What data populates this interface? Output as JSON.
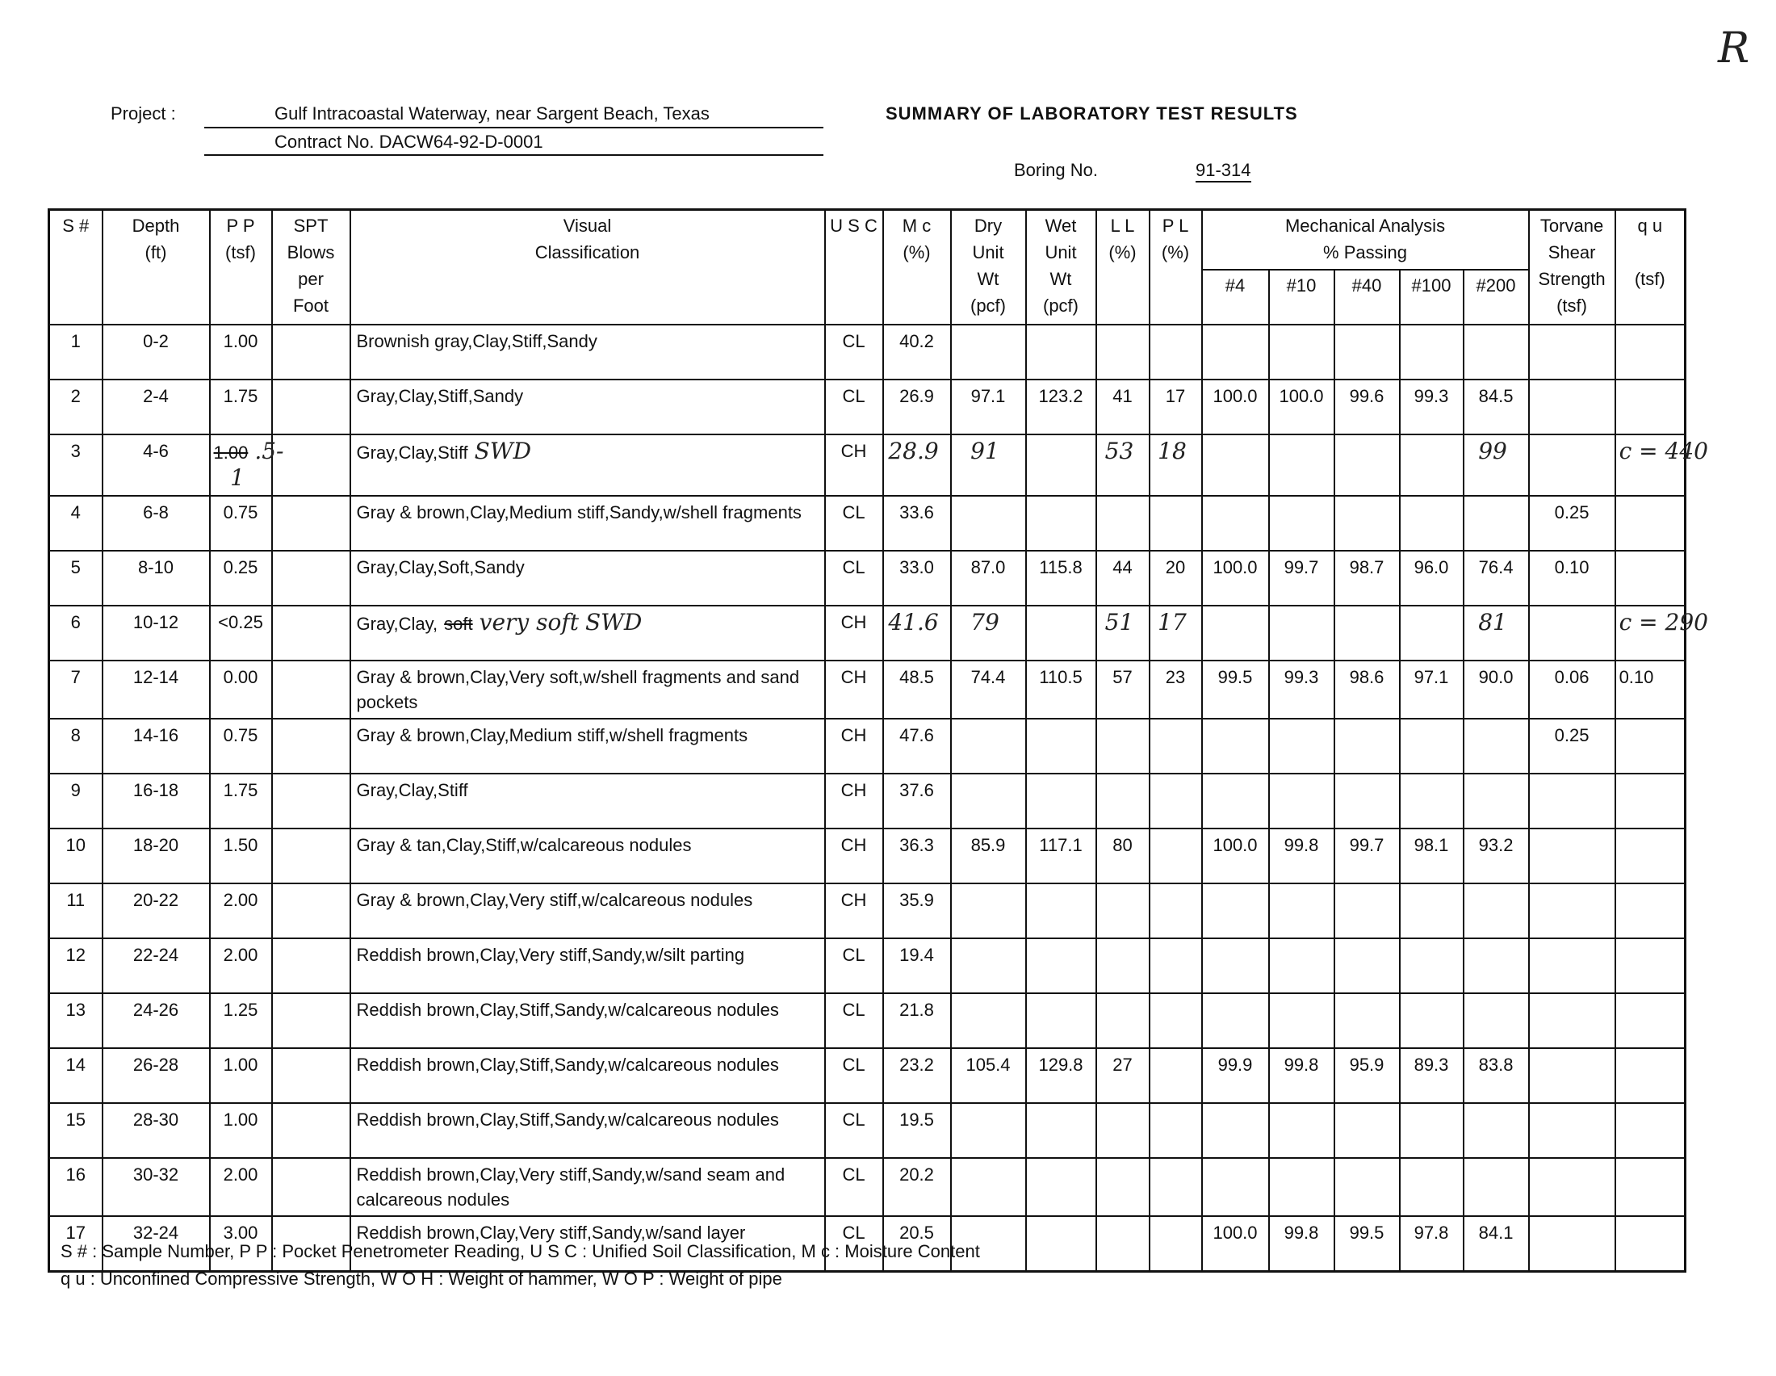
{
  "corner_mark": "R",
  "header": {
    "project_label": "Project :",
    "project": "Gulf Intracoastal Waterway, near Sargent Beach, Texas",
    "contract": "Contract No. DACW64-92-D-0001",
    "title": "SUMMARY OF LABORATORY TEST RESULTS",
    "boring_label": "Boring No.",
    "boring_no": "91-314"
  },
  "table": {
    "columns": [
      "S #",
      "Depth\n(ft)",
      "P P\n(tsf)",
      "SPT\nBlows\nper\nFoot",
      "Visual\nClassification",
      "U S C",
      "M c\n(%)",
      "Dry\nUnit\nWt\n(pcf)",
      "Wet\nUnit\nWt\n(pcf)",
      "L L\n(%)",
      "P L\n(%)",
      "#4",
      "#10",
      "#40",
      "#100",
      "#200",
      "Torvane\nShear\nStrength\n(tsf)",
      "q u\n\n(tsf)"
    ],
    "mechanical_group": "Mechanical Analysis\n% Passing",
    "rows": [
      [
        "1",
        "0-2",
        "1.00",
        null,
        "Brownish gray,Clay,Stiff,Sandy",
        "CL",
        "40.2",
        null,
        null,
        null,
        null,
        null,
        null,
        null,
        null,
        null,
        null,
        null
      ],
      [
        "2",
        "2-4",
        "1.75",
        null,
        "Gray,Clay,Stiff,Sandy",
        "CL",
        "26.9",
        "97.1",
        "123.2",
        "41",
        "17",
        "100.0",
        "100.0",
        "99.6",
        "99.3",
        "84.5",
        null,
        null
      ],
      [
        "3",
        "4-6",
        [
          {
            "text": "1.00",
            "style": "struck"
          },
          {
            "text": ".5-1",
            "style": "hand"
          }
        ],
        null,
        [
          {
            "text": "Gray,Clay,Stiff"
          },
          {
            "text": "SWD",
            "style": "hand"
          }
        ],
        "CH",
        [
          {
            "text": "28.9",
            "style": "hand"
          }
        ],
        [
          {
            "text": "91",
            "style": "hand"
          }
        ],
        null,
        [
          {
            "text": "53",
            "style": "hand"
          }
        ],
        [
          {
            "text": "18",
            "style": "hand"
          }
        ],
        null,
        null,
        null,
        null,
        [
          {
            "text": "99",
            "style": "hand"
          }
        ],
        null,
        [
          {
            "text": "c = 440",
            "style": "hand"
          }
        ]
      ],
      [
        "4",
        "6-8",
        "0.75",
        null,
        "Gray & brown,Clay,Medium stiff,Sandy,w/shell fragments",
        "CL",
        "33.6",
        null,
        null,
        null,
        null,
        null,
        null,
        null,
        null,
        null,
        "0.25",
        null
      ],
      [
        "5",
        "8-10",
        "0.25",
        null,
        "Gray,Clay,Soft,Sandy",
        "CL",
        "33.0",
        "87.0",
        "115.8",
        "44",
        "20",
        "100.0",
        "99.7",
        "98.7",
        "96.0",
        "76.4",
        "0.10",
        null
      ],
      [
        "6",
        "10-12",
        "<0.25",
        null,
        [
          {
            "text": "Gray,Clay,"
          },
          {
            "text": "soft",
            "style": "struck"
          },
          {
            "text": "very soft",
            "style": "hand"
          },
          {
            "text": "SWD",
            "style": "hand"
          }
        ],
        "CH",
        [
          {
            "text": "41.6",
            "style": "hand"
          }
        ],
        [
          {
            "text": "79",
            "style": "hand"
          }
        ],
        null,
        [
          {
            "text": "51",
            "style": "hand"
          }
        ],
        [
          {
            "text": "17",
            "style": "hand"
          }
        ],
        null,
        null,
        null,
        null,
        [
          {
            "text": "81",
            "style": "hand"
          }
        ],
        null,
        [
          {
            "text": "c = 290",
            "style": "hand"
          }
        ]
      ],
      [
        "7",
        "12-14",
        "0.00",
        null,
        "Gray & brown,Clay,Very soft,w/shell fragments and sand pockets",
        "CH",
        "48.5",
        "74.4",
        "110.5",
        "57",
        "23",
        "99.5",
        "99.3",
        "98.6",
        "97.1",
        "90.0",
        "0.06",
        "0.10"
      ],
      [
        "8",
        "14-16",
        "0.75",
        null,
        "Gray & brown,Clay,Medium stiff,w/shell fragments",
        "CH",
        "47.6",
        null,
        null,
        null,
        null,
        null,
        null,
        null,
        null,
        null,
        "0.25",
        null
      ],
      [
        "9",
        "16-18",
        "1.75",
        null,
        "Gray,Clay,Stiff",
        "CH",
        "37.6",
        null,
        null,
        null,
        null,
        null,
        null,
        null,
        null,
        null,
        null,
        null
      ],
      [
        "10",
        "18-20",
        "1.50",
        null,
        "Gray & tan,Clay,Stiff,w/calcareous nodules",
        "CH",
        "36.3",
        "85.9",
        "117.1",
        "80",
        null,
        "100.0",
        "99.8",
        "99.7",
        "98.1",
        "93.2",
        null,
        null
      ],
      [
        "11",
        "20-22",
        "2.00",
        null,
        "Gray & brown,Clay,Very stiff,w/calcareous nodules",
        "CH",
        "35.9",
        null,
        null,
        null,
        null,
        null,
        null,
        null,
        null,
        null,
        null,
        null
      ],
      [
        "12",
        "22-24",
        "2.00",
        null,
        "Reddish brown,Clay,Very stiff,Sandy,w/silt parting",
        "CL",
        "19.4",
        null,
        null,
        null,
        null,
        null,
        null,
        null,
        null,
        null,
        null,
        null
      ],
      [
        "13",
        "24-26",
        "1.25",
        null,
        "Reddish brown,Clay,Stiff,Sandy,w/calcareous nodules",
        "CL",
        "21.8",
        null,
        null,
        null,
        null,
        null,
        null,
        null,
        null,
        null,
        null,
        null
      ],
      [
        "14",
        "26-28",
        "1.00",
        null,
        "Reddish brown,Clay,Stiff,Sandy,w/calcareous nodules",
        "CL",
        "23.2",
        "105.4",
        "129.8",
        "27",
        null,
        "99.9",
        "99.8",
        "95.9",
        "89.3",
        "83.8",
        null,
        null
      ],
      [
        "15",
        "28-30",
        "1.00",
        null,
        "Reddish brown,Clay,Stiff,Sandy,w/calcareous nodules",
        "CL",
        "19.5",
        null,
        null,
        null,
        null,
        null,
        null,
        null,
        null,
        null,
        null,
        null
      ],
      [
        "16",
        "30-32",
        "2.00",
        null,
        "Reddish brown,Clay,Very stiff,Sandy,w/sand seam and calcareous nodules",
        "CL",
        "20.2",
        null,
        null,
        null,
        null,
        null,
        null,
        null,
        null,
        null,
        null,
        null
      ],
      [
        "17",
        "32-24",
        "3.00",
        null,
        "Reddish brown,Clay,Very stiff,Sandy,w/sand layer",
        "CL",
        "20.5",
        null,
        null,
        null,
        null,
        "100.0",
        "99.8",
        "99.5",
        "97.8",
        "84.1",
        null,
        null
      ]
    ]
  },
  "notes": [
    "S # : Sample Number, P P : Pocket Penetrometer Reading, U S C : Unified Soil Classification, M c : Moisture Content",
    "q u : Unconfined Compressive Strength, W O H : Weight of hammer, W O P : Weight of pipe"
  ]
}
